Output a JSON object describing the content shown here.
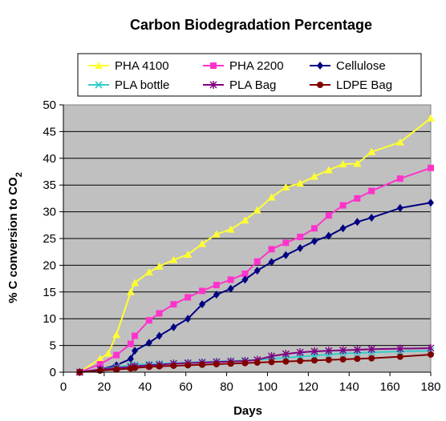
{
  "chart_data": {
    "type": "line",
    "title": "Carbon Biodegradation Percentage",
    "xlabel": "Days",
    "ylabel_main": "% C conversion to CO",
    "ylabel_sub": "2",
    "xlim": [
      0,
      180
    ],
    "ylim": [
      0,
      50
    ],
    "xticks": [
      0,
      20,
      40,
      60,
      80,
      100,
      120,
      140,
      160,
      180
    ],
    "yticks": [
      0,
      5,
      10,
      15,
      20,
      25,
      30,
      35,
      40,
      45,
      50
    ],
    "plot_background": "#c0c0c0",
    "grid": "horizontal",
    "legend_position": "top, inside box above plot",
    "series": [
      {
        "name": "PHA 4100",
        "color": "#ffff33",
        "marker": "triangle",
        "x": [
          8,
          18,
          22,
          26,
          33,
          35,
          42,
          47,
          54,
          61,
          68,
          75,
          82,
          89,
          95,
          102,
          109,
          116,
          123,
          130,
          137,
          144,
          151,
          165,
          180
        ],
        "y": [
          0,
          2.5,
          3.5,
          7,
          15,
          16.7,
          18.7,
          19.8,
          21,
          22,
          24,
          25.8,
          26.7,
          28.4,
          30.3,
          32.7,
          34.6,
          35.3,
          36.6,
          37.8,
          38.9,
          39,
          41.2,
          43,
          47.5
        ]
      },
      {
        "name": "PHA 2200",
        "color": "#ff33cc",
        "marker": "square",
        "x": [
          8,
          18,
          26,
          33,
          35,
          42,
          47,
          54,
          61,
          68,
          75,
          82,
          89,
          95,
          102,
          109,
          116,
          123,
          130,
          137,
          144,
          151,
          165,
          180
        ],
        "y": [
          0,
          1.5,
          3.2,
          5.3,
          6.8,
          9.7,
          11,
          12.7,
          14,
          15.2,
          16.3,
          17.3,
          18.4,
          20.7,
          23,
          24.2,
          25.3,
          26.9,
          29.3,
          31.2,
          32.5,
          33.9,
          36.2,
          38.2
        ]
      },
      {
        "name": "Cellulose",
        "color": "#000080",
        "marker": "diamond",
        "x": [
          8,
          18,
          26,
          33,
          35,
          42,
          47,
          54,
          61,
          68,
          75,
          82,
          89,
          95,
          102,
          109,
          116,
          123,
          130,
          137,
          144,
          151,
          165,
          180
        ],
        "y": [
          0,
          0.5,
          1.3,
          2.5,
          4,
          5.5,
          6.8,
          8.4,
          10,
          12.7,
          14.5,
          15.6,
          17.3,
          19,
          20.6,
          21.9,
          23.2,
          24.5,
          25.5,
          26.9,
          28.1,
          28.9,
          30.7,
          31.7
        ]
      },
      {
        "name": "PLA bottle",
        "color": "#33cccc",
        "marker": "x",
        "x": [
          8,
          18,
          26,
          33,
          35,
          42,
          47,
          54,
          61,
          68,
          75,
          82,
          89,
          95,
          102,
          109,
          116,
          123,
          130,
          137,
          144,
          151,
          165,
          180
        ],
        "y": [
          0,
          0.5,
          1,
          1.3,
          1.4,
          1.5,
          1.6,
          1.7,
          1.8,
          1.9,
          2,
          2.1,
          2.2,
          2.3,
          2.5,
          2.7,
          2.9,
          3.1,
          3.3,
          3.5,
          3.6,
          3.7,
          3.9,
          4
        ]
      },
      {
        "name": "PLA Bag",
        "color": "#800080",
        "marker": "star",
        "x": [
          8,
          18,
          26,
          33,
          35,
          42,
          47,
          54,
          61,
          68,
          75,
          82,
          89,
          95,
          102,
          109,
          116,
          123,
          130,
          137,
          144,
          151,
          165,
          180
        ],
        "y": [
          0,
          0.5,
          0.8,
          1,
          1.1,
          1.3,
          1.4,
          1.6,
          1.7,
          1.8,
          1.9,
          2,
          2.1,
          2.3,
          3,
          3.4,
          3.7,
          3.9,
          4,
          4.1,
          4.2,
          4.3,
          4.4,
          4.5
        ]
      },
      {
        "name": "LDPE Bag",
        "color": "#800000",
        "marker": "circle",
        "x": [
          8,
          18,
          26,
          33,
          35,
          42,
          47,
          54,
          61,
          68,
          75,
          82,
          89,
          95,
          102,
          109,
          116,
          123,
          130,
          137,
          144,
          151,
          165,
          180
        ],
        "y": [
          0,
          0.3,
          0.5,
          0.7,
          0.8,
          1,
          1.1,
          1.2,
          1.3,
          1.4,
          1.5,
          1.6,
          1.7,
          1.8,
          1.9,
          2,
          2.1,
          2.2,
          2.3,
          2.4,
          2.5,
          2.6,
          2.9,
          3.3
        ]
      }
    ]
  }
}
